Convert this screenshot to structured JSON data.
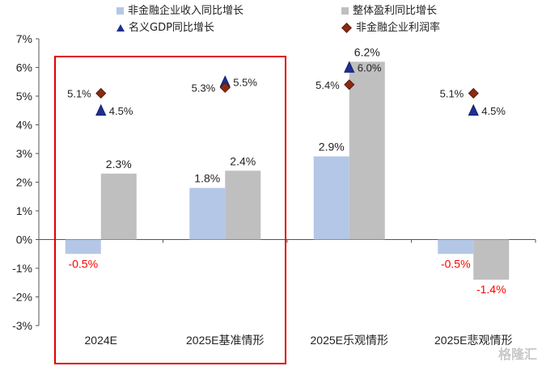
{
  "legend": {
    "items": [
      {
        "label": "非金融企业收入同比增长",
        "color": "#b4c7e7",
        "icon": "square"
      },
      {
        "label": "整体盈利同比增长",
        "color": "#bfbfbf",
        "icon": "square"
      },
      {
        "label": "名义GDP同比增长",
        "color": "#1f2f8f",
        "icon": "triangle"
      },
      {
        "label": "非金融企业利润率",
        "color": "#8b2a10",
        "icon": "diamond"
      }
    ]
  },
  "watermark": "格隆汇",
  "chart_data": {
    "type": "bar",
    "categories": [
      "2024E",
      "2025E基准情形",
      "2025E乐观情形",
      "2025E悲观情形"
    ],
    "ylim": [
      -3,
      7
    ],
    "yticks": [
      "-3%",
      "-2%",
      "-1%",
      "0%",
      "1%",
      "2%",
      "3%",
      "4%",
      "5%",
      "6%",
      "7%"
    ],
    "series": [
      {
        "name": "非金融企业收入同比增长",
        "kind": "bar",
        "color": "#b4c7e7",
        "values": [
          -0.5,
          1.8,
          2.9,
          -0.5
        ],
        "labels": [
          "-0.5%",
          "1.8%",
          "2.9%",
          "-0.5%"
        ]
      },
      {
        "name": "整体盈利同比增长",
        "kind": "bar",
        "color": "#bfbfbf",
        "values": [
          2.3,
          2.4,
          6.2,
          -1.4
        ],
        "labels": [
          "2.3%",
          "2.4%",
          "6.2%",
          "-1.4%"
        ]
      },
      {
        "name": "名义GDP同比增长",
        "kind": "marker-triangle",
        "color": "#1f2f8f",
        "values": [
          4.5,
          5.5,
          6.0,
          4.5
        ],
        "labels": [
          "4.5%",
          "5.5%",
          "6.0%",
          "4.5%"
        ]
      },
      {
        "name": "非金融企业利润率",
        "kind": "marker-diamond",
        "color": "#8b2a10",
        "values": [
          5.1,
          5.3,
          5.4,
          5.1
        ],
        "labels": [
          "5.1%",
          "5.3%",
          "5.4%",
          "5.1%"
        ]
      }
    ],
    "negative_label_color": "#ff0000",
    "highlight_box": {
      "covers_categories": [
        "2024E",
        "2025E基准情形"
      ],
      "color": "#e00000"
    }
  }
}
